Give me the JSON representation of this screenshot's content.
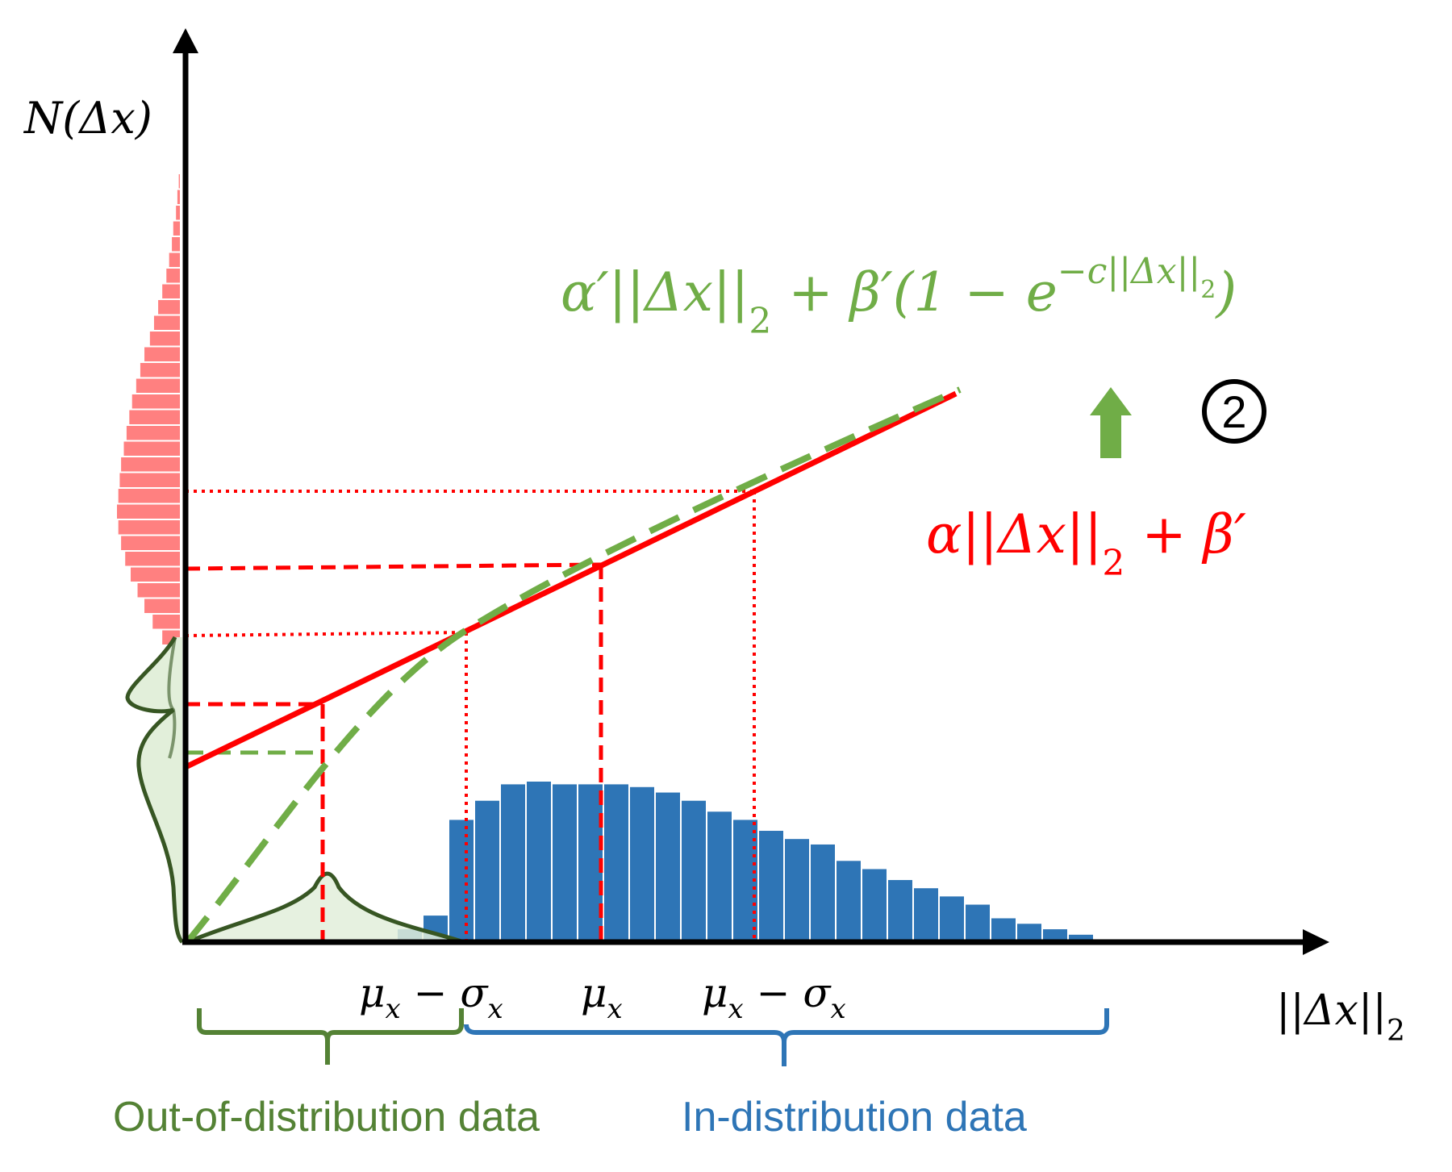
{
  "axes": {
    "y_label": "N(Δx)",
    "x_label": "||Δx||",
    "x_label_sub": "2"
  },
  "formulas": {
    "green_main": "α′||Δx||",
    "green_sub": "2",
    "green_rest": " + β′(1 − e",
    "green_sup": "−c||Δx||",
    "green_sup_sub": "2",
    "green_close": ")",
    "red_main": "α||Δx||",
    "red_sub": "2",
    "red_rest": " + β′"
  },
  "step_marker": "2",
  "ticks": {
    "left": "μ",
    "left_sub": "x",
    "left_rest": " − σ",
    "left_rest_sub": "x",
    "mid": "μ",
    "mid_sub": "x",
    "right": "μ",
    "right_sub": "x",
    "right_rest": " − σ",
    "right_rest_sub": "x"
  },
  "labels": {
    "ood": "Out-of-distribution data",
    "in_dist": "In-distribution data"
  },
  "colors": {
    "axis": "#000000",
    "red": "#ff0000",
    "green": "#70ad47",
    "dark_green": "#375623",
    "light_green": "#e2efda",
    "blue": "#2e75b6",
    "pink": "#ff8080",
    "arrow_green": "#70ad47"
  },
  "histogram_in_dist": [
    0.05,
    0.1,
    0.45,
    0.52,
    0.58,
    0.59,
    0.58,
    0.58,
    0.58,
    0.57,
    0.55,
    0.52,
    0.48,
    0.45,
    0.41,
    0.38,
    0.36,
    0.3,
    0.27,
    0.23,
    0.2,
    0.17,
    0.14,
    0.09,
    0.07,
    0.05,
    0.03,
    0.01
  ],
  "histogram_y_dist": [
    0.02,
    0.03,
    0.04,
    0.06,
    0.07,
    0.09,
    0.11,
    0.14,
    0.17,
    0.2,
    0.23,
    0.27,
    0.3,
    0.33,
    0.36,
    0.38,
    0.4,
    0.42,
    0.44,
    0.45,
    0.46,
    0.47,
    0.46,
    0.44,
    0.41,
    0.37,
    0.32,
    0.27,
    0.21,
    0.14
  ]
}
